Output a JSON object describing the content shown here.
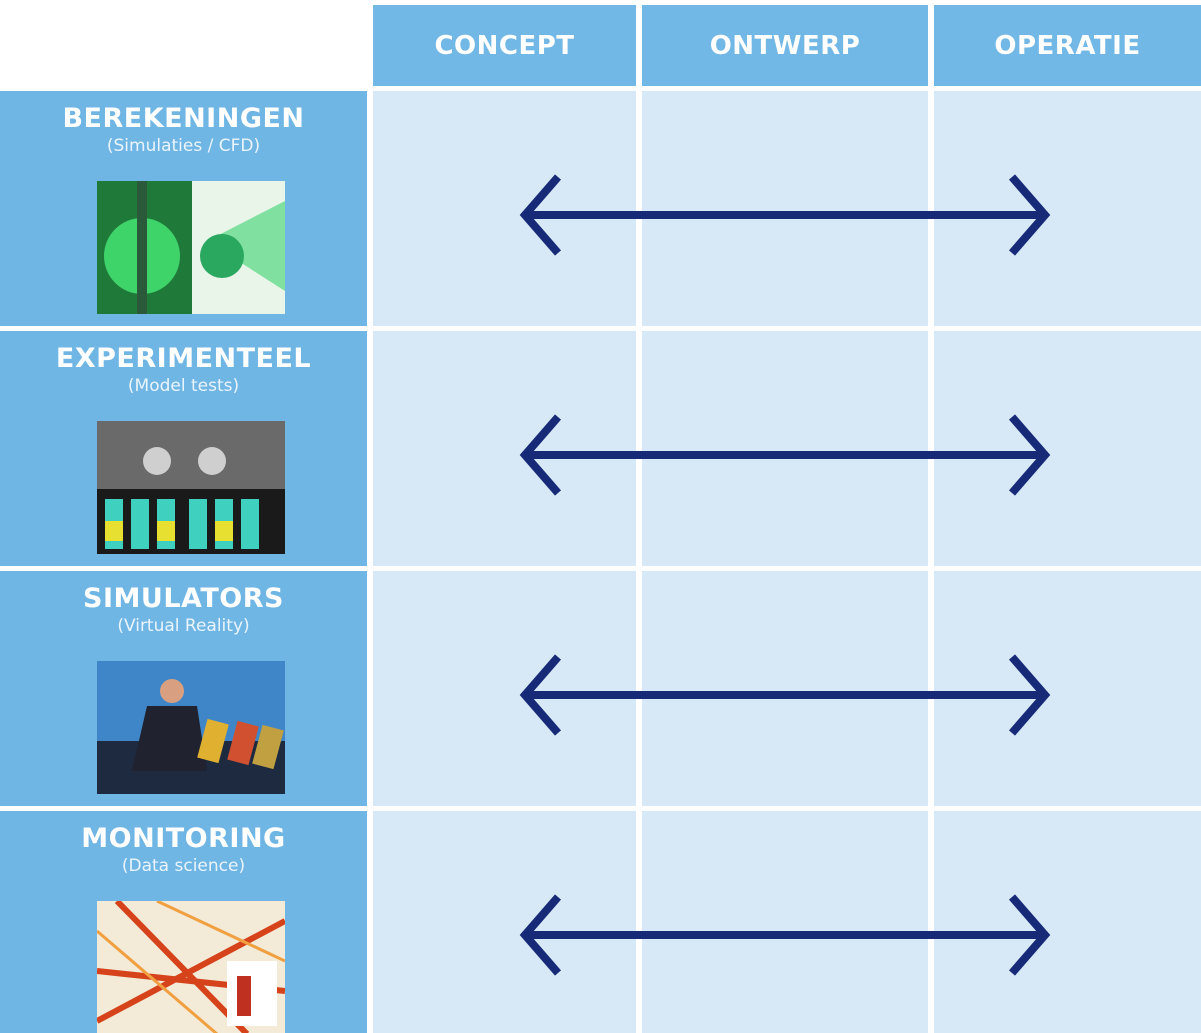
{
  "header": {
    "columns": [
      "CONCEPT",
      "ONTWERP",
      "OPERATIE"
    ]
  },
  "rows": [
    {
      "title": "BEREKENINGEN",
      "subtitle": "(Simulaties / CFD)"
    },
    {
      "title": "EXPERIMENTEEL",
      "subtitle": "(Model tests)"
    },
    {
      "title": "SIMULATORS",
      "subtitle": "(Virtual Reality)"
    },
    {
      "title": "MONITORING",
      "subtitle": "(Data science)"
    }
  ]
}
